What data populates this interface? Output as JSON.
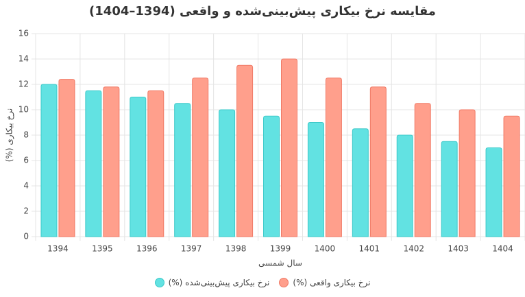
{
  "chart_data": {
    "type": "bar",
    "title": "مقایسه نرخ بیکاری پیش‌بینی‌شده و واقعی (1394–1404)",
    "x_label": "سال شمسی",
    "y_label": "نرخ بیکاری (%)",
    "categories": [
      "1394",
      "1395",
      "1396",
      "1397",
      "1398",
      "1399",
      "1400",
      "1401",
      "1402",
      "1403",
      "1404"
    ],
    "series": [
      {
        "name": "نرخ بیکاری پیش‌بینی‌شده (%)",
        "color": "#62e2e2",
        "border": "#3cc9c9",
        "values": [
          12,
          11.5,
          11,
          10.5,
          10,
          9.5,
          9,
          8.5,
          8,
          7.5,
          7
        ]
      },
      {
        "name": "نرخ بیکاری واقعی (%)",
        "color": "#ff9f8c",
        "border": "#f07a66",
        "values": [
          12.4,
          11.8,
          11.5,
          12.5,
          13.5,
          14,
          12.5,
          11.8,
          10.5,
          10,
          9.5
        ]
      }
    ],
    "ylim": [
      0,
      16
    ],
    "yticks": [
      0,
      2,
      4,
      6,
      8,
      10,
      12,
      14,
      16
    ],
    "grid": true
  }
}
